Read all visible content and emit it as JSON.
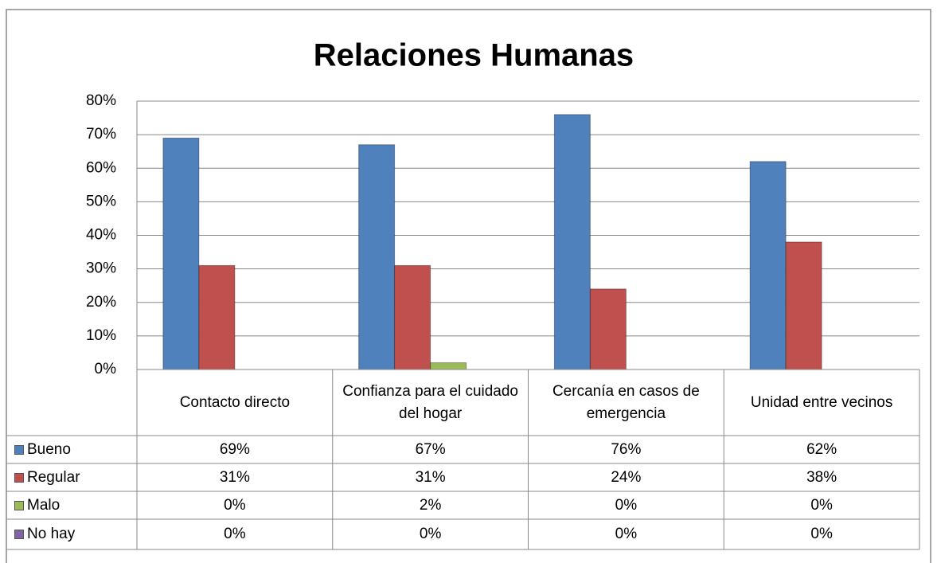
{
  "chart_data": {
    "type": "bar",
    "title": "Relaciones Humanas",
    "categories": [
      "Contacto directo",
      "Confianza para el cuidado del hogar",
      "Cercanía en casos de emergencia",
      "Unidad entre vecinos"
    ],
    "series": [
      {
        "name": "Bueno",
        "color": "#4f81bd",
        "values": [
          69,
          67,
          76,
          62
        ],
        "value_labels": [
          "69%",
          "67%",
          "76%",
          "62%"
        ]
      },
      {
        "name": "Regular",
        "color": "#c0504d",
        "values": [
          31,
          31,
          24,
          38
        ],
        "value_labels": [
          "31%",
          "31%",
          "24%",
          "38%"
        ]
      },
      {
        "name": "Malo",
        "color": "#9bbb59",
        "values": [
          0,
          2,
          0,
          0
        ],
        "value_labels": [
          "0%",
          "2%",
          "0%",
          "0%"
        ]
      },
      {
        "name": "No hay",
        "color": "#8064a2",
        "values": [
          0,
          0,
          0,
          0
        ],
        "value_labels": [
          "0%",
          "0%",
          "0%",
          "0%"
        ]
      }
    ],
    "ylim": [
      0,
      80
    ],
    "yticks": [
      {
        "value": 0,
        "label": "0%"
      },
      {
        "value": 10,
        "label": "10%"
      },
      {
        "value": 20,
        "label": "20%"
      },
      {
        "value": 30,
        "label": "30%"
      },
      {
        "value": 40,
        "label": "40%"
      },
      {
        "value": 50,
        "label": "50%"
      },
      {
        "value": 60,
        "label": "60%"
      },
      {
        "value": 70,
        "label": "70%"
      },
      {
        "value": 80,
        "label": "80%"
      }
    ],
    "grid": true
  }
}
